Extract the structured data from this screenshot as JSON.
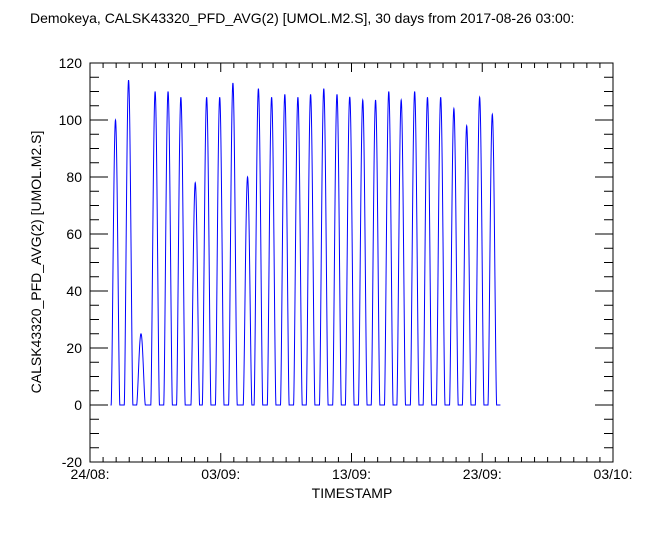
{
  "chart_data": {
    "type": "line",
    "title": "Demokeya, CALSK43320_PFD_AVG(2) [UMOL.M2.S], 30 days from  2017-08-26 03:00:",
    "xlabel": "TIMESTAMP",
    "ylabel": "CALSK43320_PFD_AVG(2) [UMOL.M2.S]",
    "x_unit": "days since 24/08 00:00",
    "xlim": [
      0,
      40
    ],
    "ylim": [
      -20,
      120
    ],
    "x_ticks": [
      {
        "value": 0,
        "label": "24/08:"
      },
      {
        "value": 10,
        "label": "03/09:"
      },
      {
        "value": 20,
        "label": "13/09:"
      },
      {
        "value": 30,
        "label": "23/09:"
      },
      {
        "value": 40,
        "label": "03/10:"
      }
    ],
    "y_ticks": [
      {
        "value": -20,
        "label": "-20"
      },
      {
        "value": 0,
        "label": "0"
      },
      {
        "value": 20,
        "label": "20"
      },
      {
        "value": 40,
        "label": "40"
      },
      {
        "value": 60,
        "label": "60"
      },
      {
        "value": 80,
        "label": "80"
      },
      {
        "value": 100,
        "label": "100"
      },
      {
        "value": 120,
        "label": "120"
      }
    ],
    "grid": false,
    "series": [
      {
        "name": "CALSK43320_PFD_AVG(2)",
        "color": "#0000ff",
        "x_start": 1.57,
        "x_end": 31.4,
        "daily_peaks": [
          {
            "day": 1.95,
            "peak": 100
          },
          {
            "day": 2.95,
            "peak": 114
          },
          {
            "day": 3.9,
            "peak": 25
          },
          {
            "day": 4.98,
            "peak": 110
          },
          {
            "day": 5.97,
            "peak": 110
          },
          {
            "day": 6.95,
            "peak": 108
          },
          {
            "day": 8.05,
            "peak": 78
          },
          {
            "day": 8.92,
            "peak": 108
          },
          {
            "day": 9.92,
            "peak": 108
          },
          {
            "day": 10.93,
            "peak": 113
          },
          {
            "day": 12.05,
            "peak": 80
          },
          {
            "day": 12.88,
            "peak": 111
          },
          {
            "day": 13.89,
            "peak": 108
          },
          {
            "day": 14.9,
            "peak": 109
          },
          {
            "day": 15.9,
            "peak": 108
          },
          {
            "day": 16.87,
            "peak": 109
          },
          {
            "day": 17.88,
            "peak": 111
          },
          {
            "day": 18.89,
            "peak": 109
          },
          {
            "day": 19.86,
            "peak": 108
          },
          {
            "day": 19.87,
            "peak": 108
          },
          {
            "day": 20.86,
            "peak": 107
          },
          {
            "day": 21.84,
            "peak": 107
          },
          {
            "day": 22.85,
            "peak": 110
          },
          {
            "day": 23.8,
            "peak": 107
          },
          {
            "day": 24.83,
            "peak": 110
          },
          {
            "day": 25.81,
            "peak": 108
          },
          {
            "day": 26.82,
            "peak": 108
          },
          {
            "day": 27.83,
            "peak": 104
          },
          {
            "day": 28.81,
            "peak": 98
          },
          {
            "day": 29.8,
            "peak": 108
          },
          {
            "day": 30.77,
            "peak": 102
          }
        ]
      }
    ]
  }
}
